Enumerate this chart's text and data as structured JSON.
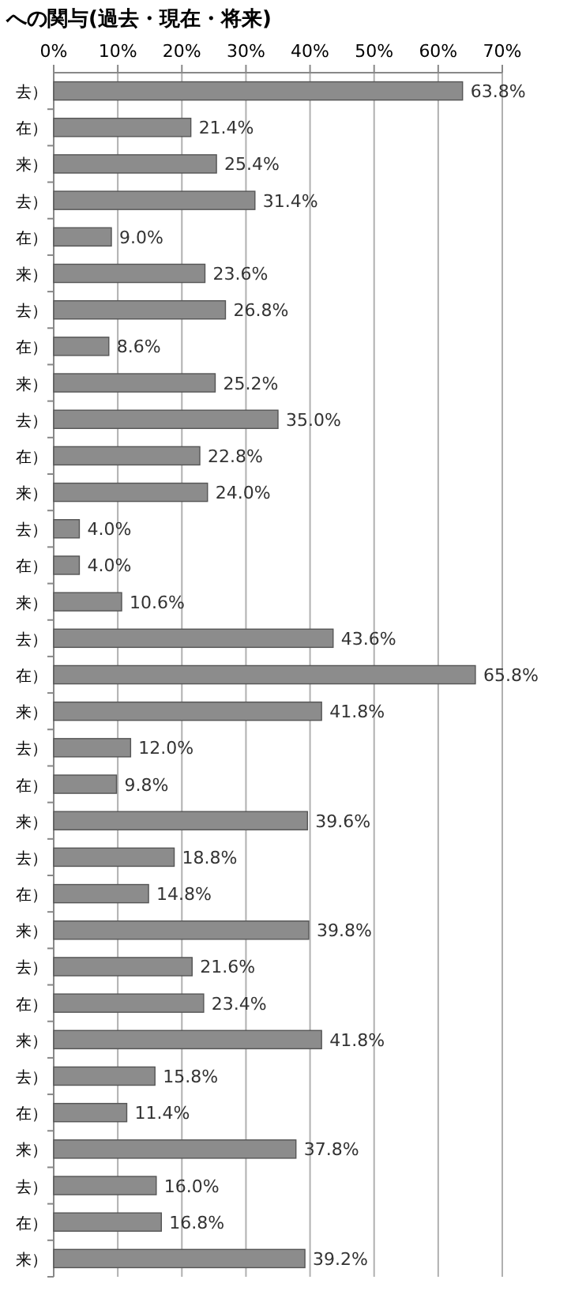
{
  "chart_data": {
    "type": "bar",
    "orientation": "horizontal",
    "title": "への関与(過去・現在・将来)",
    "categories": [
      "去）",
      "在）",
      "来）",
      "去）",
      "在）",
      "来）",
      "去）",
      "在）",
      "来）",
      "去）",
      "在）",
      "来）",
      "去）",
      "在）",
      "来）",
      "去）",
      "在）",
      "来）",
      "去）",
      "在）",
      "来）",
      "去）",
      "在）",
      "来）",
      "去）",
      "在）",
      "来）",
      "去）",
      "在）",
      "来）",
      "去）",
      "在）",
      "来）"
    ],
    "values": [
      63.8,
      21.4,
      25.4,
      31.4,
      9.0,
      23.6,
      26.8,
      8.6,
      25.2,
      35.0,
      22.8,
      24.0,
      4.0,
      4.0,
      10.6,
      43.6,
      65.8,
      41.8,
      12.0,
      9.8,
      39.6,
      18.8,
      14.8,
      39.8,
      21.6,
      23.4,
      41.8,
      15.8,
      11.4,
      37.8,
      16.0,
      16.8,
      39.2
    ],
    "value_labels": [
      "63.8%",
      "21.4%",
      "25.4%",
      "31.4%",
      "9.0%",
      "23.6%",
      "26.8%",
      "8.6%",
      "25.2%",
      "35.0%",
      "22.8%",
      "24.0%",
      "4.0%",
      "4.0%",
      "10.6%",
      "43.6%",
      "65.8%",
      "41.8%",
      "12.0%",
      "9.8%",
      "39.6%",
      "18.8%",
      "14.8%",
      "39.8%",
      "21.6%",
      "23.4%",
      "41.8%",
      "15.8%",
      "11.4%",
      "37.8%",
      "16.0%",
      "16.8%",
      "39.2%"
    ],
    "color": "#8c8c8c",
    "xlim": [
      0,
      70
    ],
    "xticks": [
      {
        "value": 0,
        "label": "0%"
      },
      {
        "value": 10,
        "label": "10%"
      },
      {
        "value": 20,
        "label": "20%"
      },
      {
        "value": 30,
        "label": "30%"
      },
      {
        "value": 40,
        "label": "40%"
      },
      {
        "value": 50,
        "label": "50%"
      },
      {
        "value": 60,
        "label": "60%"
      },
      {
        "value": 70,
        "label": "70%"
      }
    ],
    "grid": "x"
  }
}
